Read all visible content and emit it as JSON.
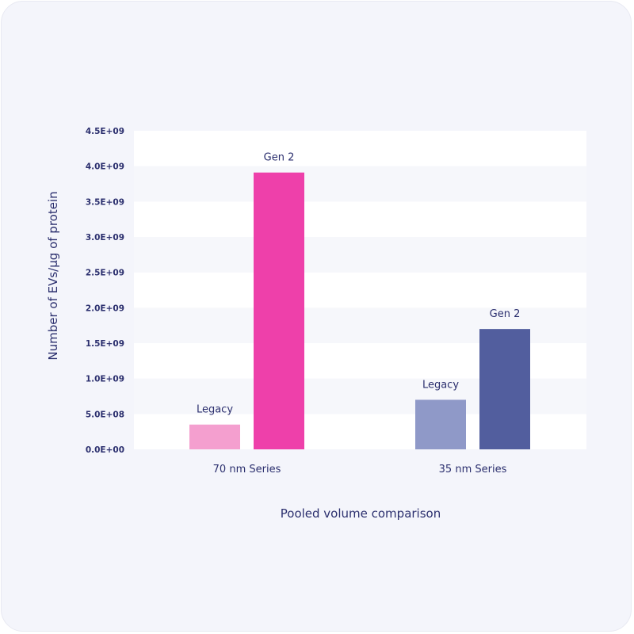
{
  "chart_data": {
    "type": "bar",
    "categories": [
      "70 nm Series",
      "35 nm Series"
    ],
    "series": [
      {
        "label": "Legacy",
        "values": [
          350000000,
          700000000
        ],
        "colors": [
          "#f49fcf",
          "#8f99c8"
        ]
      },
      {
        "label": "Gen 2",
        "values": [
          3910000000,
          1700000000
        ],
        "colors": [
          "#ee40aa",
          "#525e9e"
        ]
      }
    ],
    "title": "",
    "xlabel": "Pooled volume comparison",
    "ylabel": "Number of EVs/µg of protein",
    "ylim": [
      0,
      4500000000
    ],
    "yticks": [
      0,
      500000000,
      1000000000,
      1500000000,
      2000000000,
      2500000000,
      3000000000,
      3500000000,
      4000000000,
      4500000000
    ],
    "ytick_labels": [
      "0.0E+00",
      "5.0E+08",
      "1.0E+09",
      "1.5E+09",
      "2.0E+09",
      "2.5E+09",
      "3.0E+09",
      "3.5E+09",
      "4.0E+09",
      "4.5E+09"
    ],
    "grid": "alternating horizontal bands",
    "legend": "none (bars labeled directly)"
  }
}
